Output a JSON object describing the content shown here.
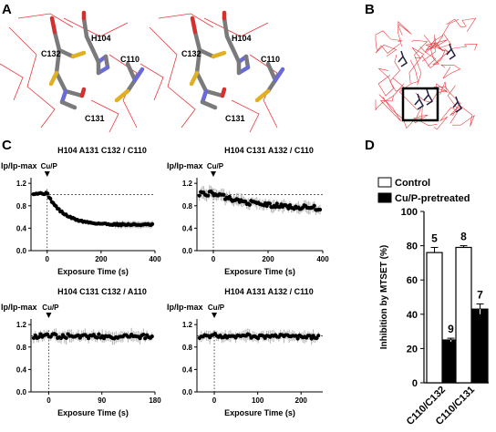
{
  "panel_letters": {
    "a": "A",
    "b": "B",
    "c": "C",
    "d": "D"
  },
  "structure_labels": [
    "H104",
    "C132",
    "C110",
    "C131"
  ],
  "chart_data": [
    {
      "type": "scatter",
      "title": "H104 A131 C132 / C110",
      "ylabel": "Ip/Ip-max",
      "xlabel": "Exposure Time (s)",
      "marker": "Cu/P",
      "ylim": [
        0.0,
        1.3
      ],
      "yticks": [
        "0.0",
        "0.4",
        "0.8",
        "1.2"
      ],
      "xticks": [
        "0",
        "200",
        "400"
      ],
      "xlim": [
        -60,
        400
      ],
      "reference_line": 1.0,
      "series": [
        {
          "curve": "decay",
          "baseline": 1.02,
          "plateau": 0.46,
          "tau": 60,
          "t_end": 390
        }
      ]
    },
    {
      "type": "scatter",
      "title": "H104 C131 A132 / C110",
      "ylabel": "Ip/Ip-max",
      "xlabel": "Exposure Time (s)",
      "marker": "Cu/P",
      "ylim": [
        0.0,
        1.3
      ],
      "yticks": [
        "0.0",
        "0.4",
        "0.8",
        "1.2"
      ],
      "xticks": [
        "0",
        "200",
        "400"
      ],
      "xlim": [
        -60,
        400
      ],
      "reference_line": 1.0,
      "series": [
        {
          "curve": "decay",
          "baseline": 1.02,
          "plateau": 0.74,
          "tau": 150,
          "t_end": 390
        }
      ]
    },
    {
      "type": "scatter",
      "title": "H104 C131 C132 / A110",
      "ylabel": "Ip/Ip-max",
      "xlabel": "Exposure Time (s)",
      "marker": "Cu/P",
      "ylim": [
        0.0,
        1.3
      ],
      "yticks": [
        "0.0",
        "0.4",
        "0.8",
        "1.2"
      ],
      "xticks": [
        "0",
        "90",
        "180"
      ],
      "xlim": [
        -30,
        180
      ],
      "reference_line": 1.0,
      "series": [
        {
          "curve": "flat",
          "baseline": 1.0,
          "plateau": 0.95,
          "tau": 400,
          "t_end": 175
        }
      ]
    },
    {
      "type": "scatter",
      "title": "H104 A131 A132 / C110",
      "ylabel": "Ip/Ip-max",
      "xlabel": "Exposure Time (s)",
      "marker": "Cu/P",
      "ylim": [
        0.0,
        1.3
      ],
      "yticks": [
        "0.0",
        "0.4",
        "0.8",
        "1.2"
      ],
      "xticks": [
        "0",
        "100",
        "200"
      ],
      "xlim": [
        -40,
        250
      ],
      "reference_line": 1.0,
      "series": [
        {
          "curve": "flat",
          "baseline": 1.0,
          "plateau": 0.96,
          "tau": 500,
          "t_end": 240
        }
      ]
    },
    {
      "type": "bar",
      "ylabel": "Inhibition by MTSET (%)",
      "categories": [
        "C110/C132",
        "C110/C131"
      ],
      "ylim": [
        0,
        100
      ],
      "yticks": [
        "0",
        "20",
        "40",
        "60",
        "80",
        "100"
      ],
      "legend": [
        "Control",
        "Cu/P-pretreated"
      ],
      "series": [
        {
          "name": "Control",
          "values": [
            76,
            79
          ],
          "errors": [
            3,
            1
          ],
          "n": [
            "5",
            "8"
          ],
          "color": "#ffffff"
        },
        {
          "name": "Cu/P-pretreated",
          "values": [
            25,
            43
          ],
          "errors": [
            1,
            3
          ],
          "n": [
            "9",
            "7"
          ],
          "color": "#000000"
        }
      ]
    }
  ],
  "colors": {
    "backbone": "#e8383d",
    "carbon": "#7a7a7a",
    "nitrogen": "#6a6ad8",
    "oxygen": "#d43030",
    "sulfur": "#e0b020",
    "error_band": "#b8b8b8"
  }
}
